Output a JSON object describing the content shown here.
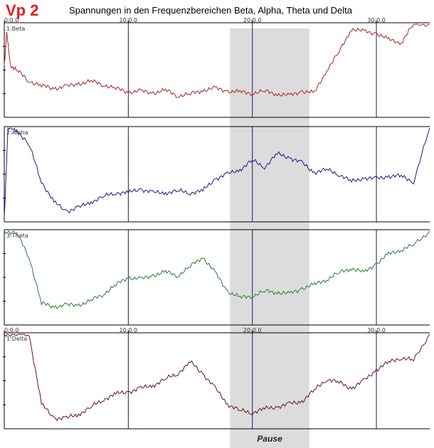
{
  "header": {
    "label": "Vp 2",
    "title": "Spannungen in den Frequenzbereichen Beta, Alpha, Theta und Delta"
  },
  "colors": {
    "label": "#e31b23",
    "pause_band": "#dcdcdc",
    "grid": "#1a1a66",
    "axis": "#000000"
  },
  "chart_data": {
    "type": "line",
    "x_ticks": [
      "0:0.0",
      "10:0.0",
      "20:0.0",
      "30:0.0"
    ],
    "x_tick_minutes": [
      0,
      10,
      20,
      30
    ],
    "xlim_minutes": [
      0,
      34.3
    ],
    "pause": {
      "label": "Pause",
      "start_minutes": 18.2,
      "end_minutes": 24.6
    },
    "panels": [
      {
        "name": "1:Beta",
        "color": "#b22222",
        "show_ticks": true,
        "x": [
          0,
          0.2,
          0.5,
          1,
          2,
          3,
          4,
          5,
          6,
          7,
          8,
          9,
          10,
          11,
          12,
          13,
          14,
          15,
          16,
          17,
          18,
          19,
          20,
          21,
          22,
          23,
          24,
          25,
          26,
          27,
          28,
          29,
          30,
          31,
          32,
          33,
          34.3
        ],
        "y": [
          0.55,
          0.9,
          0.55,
          0.5,
          0.38,
          0.33,
          0.3,
          0.32,
          0.35,
          0.38,
          0.34,
          0.3,
          0.26,
          0.27,
          0.25,
          0.28,
          0.22,
          0.24,
          0.28,
          0.3,
          0.27,
          0.26,
          0.25,
          0.27,
          0.24,
          0.22,
          0.27,
          0.25,
          0.5,
          0.7,
          0.95,
          0.92,
          0.9,
          0.83,
          0.8,
          1.0,
          1.0
        ]
      },
      {
        "name": "2:Alpha",
        "color": "#1a1a8c",
        "show_ticks": false,
        "x": [
          0,
          0.3,
          1,
          2,
          3,
          4,
          5,
          6,
          7,
          8,
          9,
          10,
          11,
          12,
          13,
          14,
          15,
          16,
          17,
          18,
          19,
          20,
          21,
          22,
          23,
          24,
          25,
          26,
          27,
          28,
          29,
          30,
          31,
          32,
          33,
          34.3
        ],
        "y": [
          0.02,
          1.0,
          0.98,
          0.82,
          0.42,
          0.2,
          0.1,
          0.14,
          0.2,
          0.26,
          0.3,
          0.3,
          0.34,
          0.3,
          0.3,
          0.32,
          0.3,
          0.32,
          0.45,
          0.5,
          0.55,
          0.65,
          0.58,
          0.72,
          0.68,
          0.62,
          0.52,
          0.55,
          0.5,
          0.42,
          0.46,
          0.45,
          0.48,
          0.48,
          0.42,
          1.0
        ]
      },
      {
        "name": "3:Theta",
        "color": "#2e7d32",
        "show_ticks": false,
        "x": [
          0,
          1,
          2,
          3,
          4,
          5,
          6,
          7,
          8,
          9,
          10,
          11,
          12,
          13,
          14,
          15,
          16,
          17,
          18,
          19,
          20,
          21,
          22,
          23,
          24,
          25,
          26,
          27,
          28,
          29,
          30,
          31,
          32,
          33,
          34.3
        ],
        "y": [
          1.0,
          0.98,
          0.72,
          0.22,
          0.18,
          0.2,
          0.2,
          0.25,
          0.32,
          0.42,
          0.5,
          0.48,
          0.52,
          0.56,
          0.52,
          0.62,
          0.72,
          0.55,
          0.35,
          0.28,
          0.3,
          0.35,
          0.34,
          0.32,
          0.38,
          0.42,
          0.48,
          0.55,
          0.6,
          0.55,
          0.65,
          0.75,
          0.8,
          0.85,
          1.0
        ]
      },
      {
        "name": "1:Delta",
        "color": "#6a1020",
        "show_ticks": true,
        "x": [
          0,
          1,
          2,
          3,
          4,
          5,
          6,
          7,
          8,
          9,
          10,
          11,
          12,
          13,
          14,
          15,
          16,
          17,
          18,
          19,
          20,
          21,
          22,
          23,
          24,
          25,
          26,
          27,
          28,
          29,
          30,
          31,
          32,
          33,
          34.3
        ],
        "y": [
          1.0,
          1.0,
          1.0,
          0.25,
          0.1,
          0.1,
          0.14,
          0.22,
          0.3,
          0.36,
          0.38,
          0.42,
          0.45,
          0.52,
          0.58,
          0.7,
          0.58,
          0.42,
          0.25,
          0.18,
          0.16,
          0.2,
          0.22,
          0.25,
          0.28,
          0.4,
          0.52,
          0.48,
          0.42,
          0.5,
          0.62,
          0.7,
          0.75,
          0.72,
          1.0
        ]
      }
    ]
  }
}
